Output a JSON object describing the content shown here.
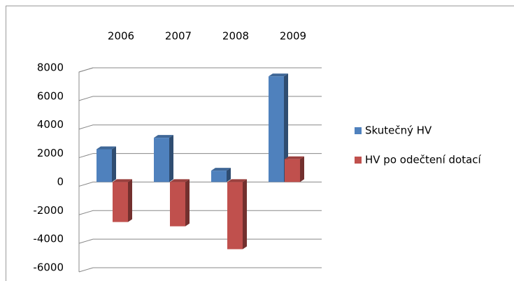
{
  "chart_data": {
    "type": "bar3d",
    "categories": [
      "2006",
      "2007",
      "2008",
      "2009"
    ],
    "series": [
      {
        "name": "Skutečný HV",
        "color": "#4f81bd",
        "values": [
          2300,
          3100,
          800,
          7400
        ]
      },
      {
        "name": "HV po odečtení dotací",
        "color": "#c0504d",
        "values": [
          -2800,
          -3100,
          -4700,
          1600
        ]
      }
    ],
    "ylim": [
      -6000,
      8000
    ],
    "yticks": [
      -6000,
      -4000,
      -2000,
      0,
      2000,
      4000,
      6000,
      8000
    ],
    "grid": true,
    "legend": "right"
  }
}
